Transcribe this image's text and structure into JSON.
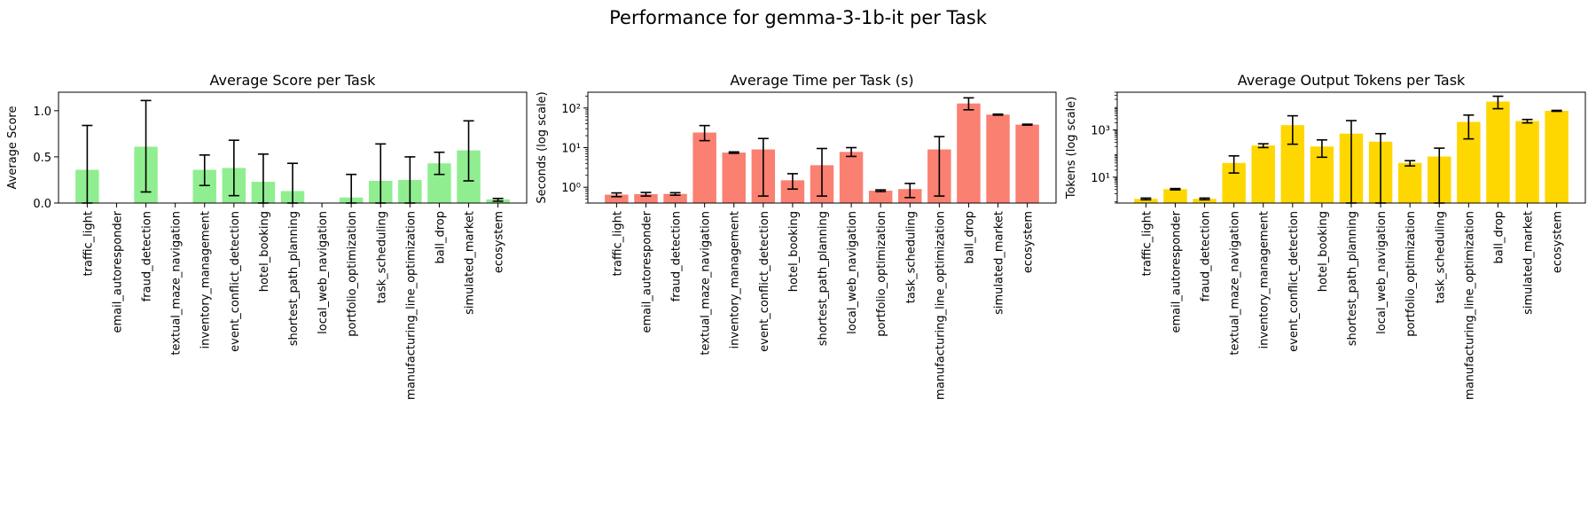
{
  "suptitle": "Performance for gemma-3-1b-it per Task",
  "chart_data": [
    {
      "type": "bar",
      "title": "Average Score per Task",
      "xlabel": "",
      "ylabel": "Average Score",
      "yscale": "linear",
      "ylim": [
        0,
        1.2
      ],
      "yticks": [
        0.0,
        0.5,
        1.0
      ],
      "ytick_labels": [
        "0.0",
        "0.5",
        "1.0"
      ],
      "color": "#90ee90",
      "grid": false,
      "categories": [
        "traffic_light",
        "email_autoresponder",
        "fraud_detection",
        "textual_maze_navigation",
        "inventory_management",
        "event_conflict_detection",
        "hotel_booking",
        "shortest_path_planning",
        "local_web_navigation",
        "portfolio_optimization",
        "task_scheduling",
        "manufacturing_line_optimization",
        "ball_drop",
        "simulated_market",
        "ecosystem"
      ],
      "values": [
        0.36,
        0.0,
        0.61,
        0.0,
        0.36,
        0.38,
        0.23,
        0.13,
        0.0,
        0.06,
        0.24,
        0.25,
        0.43,
        0.57,
        0.04
      ],
      "error_low": [
        0.0,
        0.0,
        0.12,
        0.0,
        0.19,
        0.08,
        0.0,
        0.0,
        0.0,
        0.0,
        0.0,
        0.0,
        0.31,
        0.24,
        0.02
      ],
      "error_high": [
        0.84,
        0.0,
        1.11,
        0.0,
        0.52,
        0.68,
        0.53,
        0.43,
        0.0,
        0.31,
        0.64,
        0.5,
        0.55,
        0.89,
        0.05
      ]
    },
    {
      "type": "bar",
      "title": "Average Time per Task (s)",
      "xlabel": "",
      "ylabel": "Seconds (log scale)",
      "yscale": "log",
      "ylim": [
        0.4,
        250
      ],
      "yticks": [
        1,
        10,
        100
      ],
      "ytick_labels": [
        "10⁰",
        "10¹",
        "10²"
      ],
      "color": "#fa8072",
      "grid": false,
      "categories": [
        "traffic_light",
        "email_autoresponder",
        "fraud_detection",
        "textual_maze_navigation",
        "inventory_management",
        "event_conflict_detection",
        "hotel_booking",
        "shortest_path_planning",
        "local_web_navigation",
        "portfolio_optimization",
        "task_scheduling",
        "manufacturing_line_optimization",
        "ball_drop",
        "simulated_market",
        "ecosystem"
      ],
      "values": [
        0.65,
        0.67,
        0.68,
        24,
        7.5,
        9,
        1.5,
        3.6,
        7.8,
        0.82,
        0.9,
        9,
        130,
        68,
        38
      ],
      "error_low": [
        0.58,
        0.6,
        0.63,
        15,
        7.2,
        0.6,
        0.9,
        0.6,
        6,
        0.78,
        0.55,
        0.6,
        90,
        66,
        37
      ],
      "error_high": [
        0.72,
        0.74,
        0.73,
        36,
        7.8,
        17,
        2.2,
        9.5,
        10,
        0.86,
        1.25,
        19,
        180,
        70,
        39
      ]
    },
    {
      "type": "bar",
      "title": "Average Output Tokens per Task",
      "xlabel": "",
      "ylabel": "Tokens (log scale)",
      "yscale": "log",
      "ylim": [
        0.8,
        40000
      ],
      "yticks": [
        10,
        1000
      ],
      "ytick_labels": [
        "10¹",
        "10³"
      ],
      "color": "#ffd700",
      "grid": false,
      "categories": [
        "traffic_light",
        "email_autoresponder",
        "fraud_detection",
        "textual_maze_navigation",
        "inventory_management",
        "event_conflict_detection",
        "hotel_booking",
        "shortest_path_planning",
        "local_web_navigation",
        "portfolio_optimization",
        "task_scheduling",
        "manufacturing_line_optimization",
        "ball_drop",
        "simulated_market",
        "ecosystem"
      ],
      "values": [
        1.2,
        3.1,
        1.2,
        40,
        220,
        1600,
        200,
        700,
        320,
        40,
        75,
        2200,
        16000,
        2400,
        6500
      ],
      "error_low": [
        1.1,
        2.9,
        1.1,
        15,
        180,
        250,
        70,
        0.8,
        0.8,
        30,
        0.8,
        420,
        8000,
        2000,
        6200
      ],
      "error_high": [
        1.3,
        3.3,
        1.3,
        80,
        260,
        4000,
        380,
        2500,
        700,
        50,
        170,
        4300,
        27000,
        2800,
        6800
      ]
    }
  ]
}
